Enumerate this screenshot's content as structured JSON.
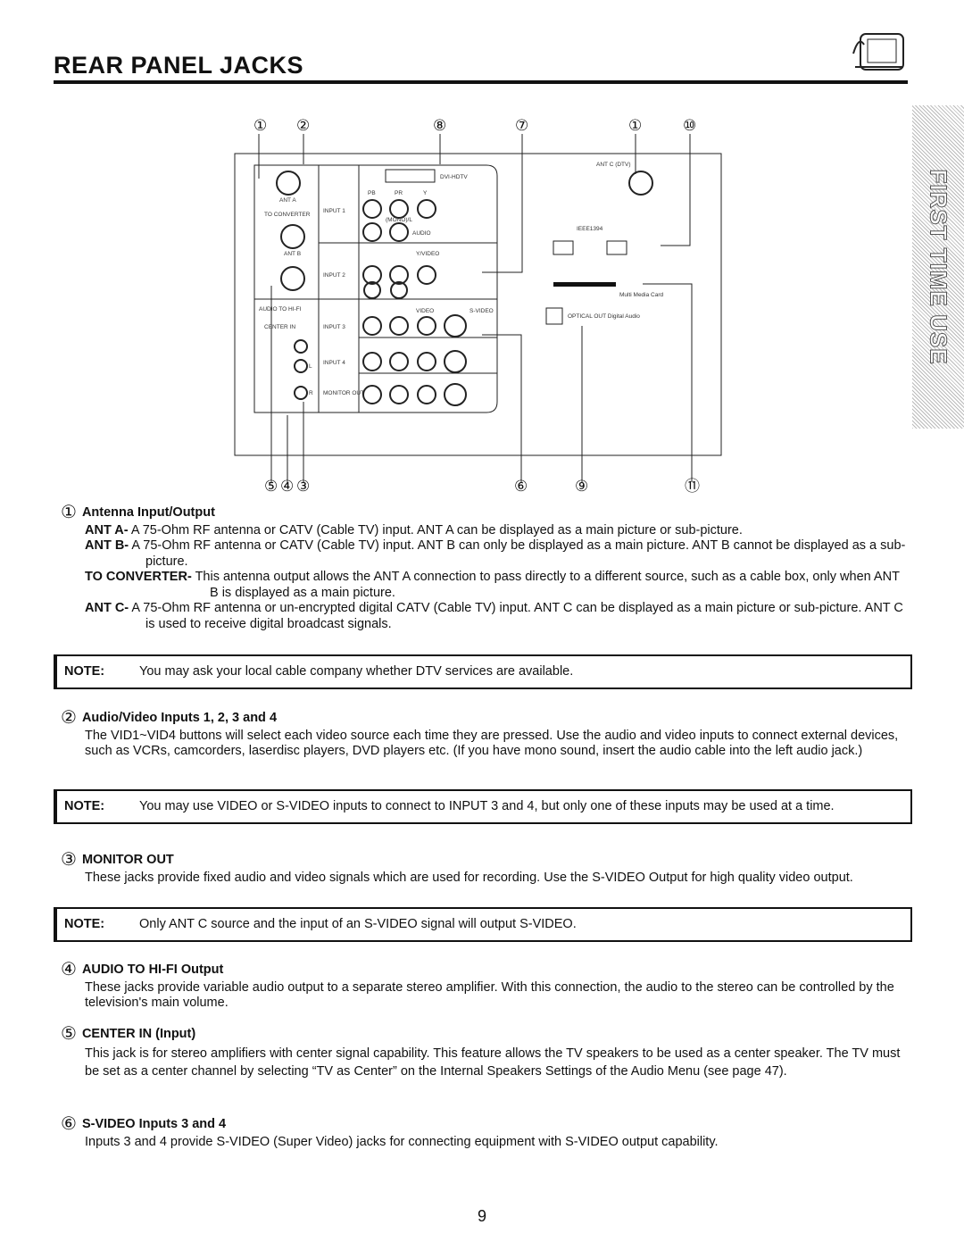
{
  "header": {
    "title": "REAR PANEL JACKS"
  },
  "side_tab": {
    "text": "FIRST TIME USE"
  },
  "diagram": {
    "callouts_top": [
      "①",
      "②",
      "⑧",
      "⑦",
      "①",
      "⑩"
    ],
    "callouts_bottom": [
      "⑤",
      "④",
      "③",
      "⑥",
      "⑨",
      "⑪"
    ],
    "labels": {
      "ant_a": "ANT A",
      "to_converter": "TO CONVERTER",
      "ant_b": "ANT B",
      "audio_to_hifi": "AUDIO TO HI-FI",
      "center_in": "CENTER IN",
      "l": "L",
      "r": "R",
      "input1": "INPUT 1",
      "input2": "INPUT 2",
      "input3": "INPUT 3",
      "input4": "INPUT 4",
      "monitor_out": "MONITOR OUT",
      "dvi_hdtv": "DVI-HDTV",
      "pb": "PB",
      "pr": "PR",
      "y": "Y",
      "y_video": "Y/VIDEO",
      "mono_l": "(MONO)/L",
      "audio": "AUDIO",
      "video": "VIDEO",
      "s_video": "S-VIDEO",
      "ant_c": "ANT C (DTV)",
      "ieee": "IEEE1394",
      "card": "Multi Media Card",
      "optical": "OPTICAL OUT Digital Audio"
    }
  },
  "sections": [
    {
      "marker": "①",
      "heading": "Antenna Input/Output",
      "items": [
        {
          "term": "ANT A-",
          "text": "A 75-Ohm RF antenna or CATV (Cable TV) input.  ANT A can be displayed as a main picture or sub-picture."
        },
        {
          "term": "ANT B-",
          "text": "A 75-Ohm RF antenna or CATV (Cable TV) input.  ANT B can only be displayed as a main picture.  ANT B cannot be displayed as a sub-picture."
        },
        {
          "term": "TO CONVERTER-",
          "text": "This antenna output allows the ANT A connection to pass directly to a different source, such as a cable box, only when ANT B is displayed as a main picture."
        },
        {
          "term": "ANT C-",
          "text": "A 75-Ohm RF antenna or un-encrypted digital CATV (Cable TV) input.  ANT C can be displayed as a main picture or sub-picture.  ANT C is used to receive digital broadcast signals."
        }
      ]
    },
    {
      "marker": "②",
      "heading": "Audio/Video Inputs 1, 2, 3 and 4",
      "text": "The VID1~VID4 buttons will select each video source each time they are pressed.  Use the audio and video inputs to connect external devices, such as VCRs, camcorders, laserdisc players, DVD players etc.  (If you have mono sound, insert the audio cable into the left audio jack.)"
    },
    {
      "marker": "③",
      "heading": "MONITOR OUT",
      "text": "These jacks provide fixed audio and video signals which are used for recording.  Use the S-VIDEO Output for high quality video output."
    },
    {
      "marker": "④",
      "heading": "AUDIO TO HI-FI Output",
      "text": "These jacks provide variable audio output to a separate stereo amplifier.  With this connection, the audio to the stereo can be controlled by the television's main volume."
    },
    {
      "marker": "⑤",
      "heading": "CENTER IN (Input)",
      "text": "This jack is for stereo amplifiers with center signal capability.  This feature allows the TV speakers to be used as a center speaker.  The TV must be set as a center channel by selecting “TV as Center” on the Internal Speakers Settings of the Audio Menu (see page 47)."
    },
    {
      "marker": "⑥",
      "heading": "S-VIDEO Inputs 3 and 4",
      "text": "Inputs 3 and 4 provide S-VIDEO (Super Video) jacks for connecting equipment with S-VIDEO output capability."
    }
  ],
  "notes": [
    {
      "label": "NOTE:",
      "text": "You may ask your local cable company whether DTV services are available."
    },
    {
      "label": "NOTE:",
      "text": "You may use VIDEO or S-VIDEO inputs to connect to INPUT 3 and 4, but only one of these inputs may be used at a time."
    },
    {
      "label": "NOTE:",
      "text": "Only ANT C source and the input of an S-VIDEO signal will output S-VIDEO."
    }
  ],
  "footer": {
    "page_number": "9"
  }
}
